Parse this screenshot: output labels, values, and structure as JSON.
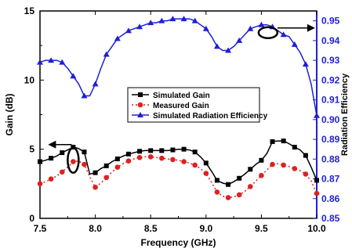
{
  "chart_data": {
    "type": "line",
    "xlabel": "Frequency (GHz)",
    "ylabel": "Gain (dB)",
    "y2label": "Radiation Efficiency",
    "xlim": [
      7.5,
      10.0
    ],
    "ylim": [
      0,
      15
    ],
    "y2lim": [
      0.85,
      0.955
    ],
    "x_ticks": [
      "7.5",
      "8.0",
      "8.5",
      "9.0",
      "9.5",
      "10.0"
    ],
    "y_ticks": [
      "0",
      "5",
      "10",
      "15"
    ],
    "y2_ticks": [
      "0.85",
      "0.86",
      "0.87",
      "0.88",
      "0.89",
      "0.90",
      "0.91",
      "0.92",
      "0.93",
      "0.94",
      "0.95"
    ],
    "legend_position": "center",
    "grid": false,
    "series": [
      {
        "name": "Simulated Gain",
        "axis": "left",
        "color": "#000000",
        "marker": "square",
        "line": "solid",
        "x": [
          7.5,
          7.55,
          7.6,
          7.65,
          7.7,
          7.75,
          7.8,
          7.85,
          7.9,
          7.95,
          8.0,
          8.05,
          8.1,
          8.15,
          8.2,
          8.25,
          8.3,
          8.35,
          8.4,
          8.45,
          8.5,
          8.55,
          8.6,
          8.65,
          8.7,
          8.75,
          8.8,
          8.85,
          8.9,
          8.95,
          9.0,
          9.05,
          9.1,
          9.15,
          9.2,
          9.25,
          9.3,
          9.35,
          9.4,
          9.45,
          9.5,
          9.55,
          9.6,
          9.65,
          9.7,
          9.75,
          9.8,
          9.85,
          9.9,
          9.95,
          10.0
        ],
        "y": [
          4.1,
          4.2,
          4.35,
          4.5,
          4.75,
          4.95,
          5.15,
          5.05,
          4.8,
          3.2,
          3.3,
          3.6,
          3.8,
          4.1,
          4.3,
          4.5,
          4.65,
          4.75,
          4.85,
          4.9,
          4.9,
          4.9,
          4.9,
          4.9,
          4.95,
          5.0,
          5.0,
          4.95,
          4.8,
          4.45,
          4.0,
          3.4,
          2.75,
          2.55,
          2.45,
          2.65,
          2.9,
          3.2,
          3.55,
          3.9,
          4.2,
          4.7,
          5.55,
          5.6,
          5.6,
          5.4,
          5.15,
          4.95,
          4.55,
          3.7,
          2.75
        ]
      },
      {
        "name": "Measured Gain",
        "axis": "left",
        "color": "#e02020",
        "marker": "circle",
        "line": "dotted",
        "x": [
          7.5,
          7.55,
          7.6,
          7.65,
          7.7,
          7.75,
          7.8,
          7.85,
          7.9,
          7.95,
          8.0,
          8.05,
          8.1,
          8.15,
          8.2,
          8.25,
          8.3,
          8.35,
          8.4,
          8.45,
          8.5,
          8.55,
          8.6,
          8.65,
          8.7,
          8.75,
          8.8,
          8.85,
          8.9,
          8.95,
          9.0,
          9.05,
          9.1,
          9.15,
          9.2,
          9.25,
          9.3,
          9.35,
          9.4,
          9.45,
          9.5,
          9.55,
          9.6,
          9.65,
          9.7,
          9.75,
          9.8,
          9.85,
          9.9,
          9.95,
          10.0
        ],
        "y": [
          2.5,
          2.65,
          2.85,
          3.05,
          3.35,
          3.7,
          4.1,
          4.15,
          3.9,
          3.0,
          2.25,
          2.55,
          2.95,
          3.35,
          3.7,
          3.95,
          4.15,
          4.3,
          4.4,
          4.45,
          4.45,
          4.4,
          4.35,
          4.3,
          4.25,
          4.2,
          4.1,
          4.0,
          3.85,
          3.6,
          3.25,
          2.6,
          1.9,
          1.6,
          1.5,
          1.55,
          1.7,
          1.95,
          2.3,
          2.7,
          3.1,
          3.5,
          3.9,
          3.95,
          3.85,
          3.75,
          3.6,
          3.45,
          3.2,
          2.7,
          1.8
        ]
      },
      {
        "name": "Simulated Radiation Efficiency",
        "axis": "right",
        "color": "#1f1fd6",
        "marker": "triangle",
        "line": "solid",
        "x": [
          7.5,
          7.55,
          7.6,
          7.65,
          7.7,
          7.75,
          7.8,
          7.85,
          7.9,
          7.95,
          8.0,
          8.05,
          8.1,
          8.15,
          8.2,
          8.25,
          8.3,
          8.35,
          8.4,
          8.45,
          8.5,
          8.55,
          8.6,
          8.65,
          8.7,
          8.75,
          8.8,
          8.85,
          8.9,
          8.95,
          9.0,
          9.05,
          9.1,
          9.15,
          9.2,
          9.25,
          9.3,
          9.35,
          9.4,
          9.45,
          9.5,
          9.55,
          9.6,
          9.65,
          9.7,
          9.75,
          9.8,
          9.85,
          9.9,
          9.95,
          10.0
        ],
        "y": [
          0.929,
          0.93,
          0.93,
          0.93,
          0.929,
          0.926,
          0.922,
          0.918,
          0.912,
          0.912,
          0.918,
          0.926,
          0.933,
          0.937,
          0.941,
          0.943,
          0.945,
          0.946,
          0.947,
          0.948,
          0.949,
          0.949,
          0.95,
          0.95,
          0.951,
          0.951,
          0.951,
          0.951,
          0.95,
          0.948,
          0.946,
          0.942,
          0.937,
          0.935,
          0.935,
          0.937,
          0.94,
          0.943,
          0.946,
          0.947,
          0.948,
          0.948,
          0.947,
          0.945,
          0.943,
          0.942,
          0.938,
          0.934,
          0.928,
          0.918,
          0.902
        ]
      }
    ],
    "annotations": [
      {
        "type": "ellipse-with-arrow",
        "direction": "right",
        "series": "Simulated Radiation Efficiency",
        "x": 9.56,
        "y2": 0.944
      },
      {
        "type": "ellipse-with-arrow",
        "direction": "left",
        "series": "Simulated Gain",
        "x": 7.8,
        "y": 4.2
      }
    ]
  }
}
